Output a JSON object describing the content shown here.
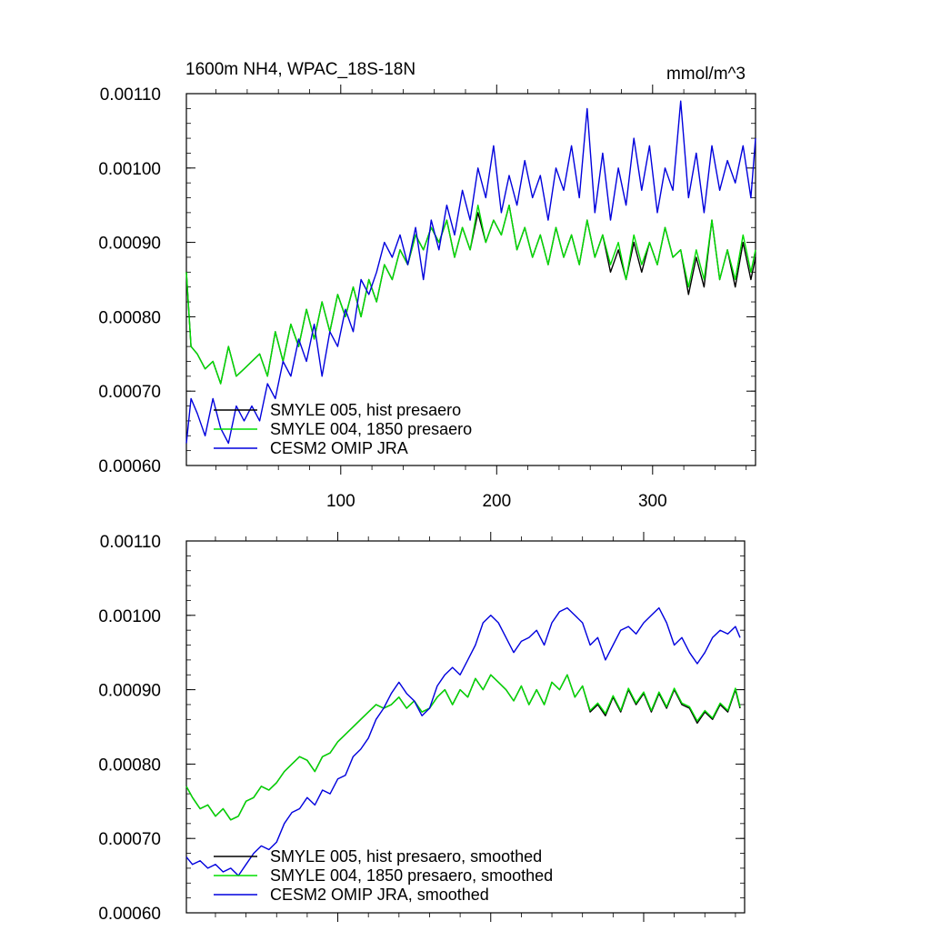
{
  "page": {
    "title": "1600m NH4, WPAC_18S-18N",
    "units": "mmol/m^3"
  },
  "chart_data": [
    {
      "type": "line",
      "title": "1600m NH4, WPAC_18S-18N",
      "units_label": "mmol/m^3",
      "xlabel": "",
      "ylabel": "",
      "xlim": [
        1,
        366
      ],
      "ylim": [
        0.0006,
        0.0011
      ],
      "x_ticks": [
        100,
        200,
        300
      ],
      "x_tick_labels": [
        "100",
        "200",
        "300"
      ],
      "y_ticks": [
        0.0006,
        0.0007,
        0.0008,
        0.0009,
        0.001,
        0.0011
      ],
      "y_tick_labels": [
        "0.00060",
        "0.00070",
        "0.00080",
        "0.00090",
        "0.00100",
        "0.00110"
      ],
      "grid": false,
      "legend_position": "bottom-left",
      "series": [
        {
          "name": "SMYLE 005, hist presaero",
          "color": "#000000",
          "x": [
            1,
            4,
            8,
            13,
            18,
            23,
            28,
            33,
            38,
            43,
            48,
            53,
            58,
            63,
            68,
            73,
            78,
            83,
            88,
            93,
            98,
            103,
            108,
            113,
            118,
            123,
            128,
            133,
            138,
            143,
            148,
            153,
            158,
            163,
            168,
            173,
            178,
            183,
            188,
            193,
            198,
            203,
            208,
            213,
            218,
            223,
            228,
            233,
            238,
            243,
            248,
            253,
            258,
            263,
            268,
            273,
            278,
            283,
            288,
            293,
            298,
            303,
            308,
            313,
            318,
            323,
            328,
            333,
            338,
            343,
            348,
            353,
            358,
            363,
            366
          ],
          "values": [
            0.00086,
            0.00076,
            0.00075,
            0.00073,
            0.00074,
            0.00071,
            0.00076,
            0.00072,
            0.00073,
            0.00074,
            0.00075,
            0.00072,
            0.00078,
            0.00074,
            0.00079,
            0.00076,
            0.00081,
            0.00077,
            0.00082,
            0.00078,
            0.00083,
            0.0008,
            0.00084,
            0.0008,
            0.00085,
            0.00082,
            0.00087,
            0.00085,
            0.00089,
            0.00087,
            0.00091,
            0.00089,
            0.00092,
            0.0009,
            0.00093,
            0.00088,
            0.00092,
            0.00089,
            0.00094,
            0.0009,
            0.00093,
            0.00091,
            0.00095,
            0.00089,
            0.00092,
            0.00088,
            0.00091,
            0.00087,
            0.00092,
            0.00088,
            0.00091,
            0.00087,
            0.00093,
            0.00088,
            0.00091,
            0.00086,
            0.00089,
            0.00085,
            0.0009,
            0.00086,
            0.0009,
            0.00087,
            0.00092,
            0.00088,
            0.00089,
            0.00083,
            0.00088,
            0.00084,
            0.00093,
            0.00085,
            0.00089,
            0.00084,
            0.0009,
            0.00085,
            0.00088
          ]
        },
        {
          "name": "SMYLE 004, 1850 presaero",
          "color": "#00dd00",
          "x": [
            1,
            4,
            8,
            13,
            18,
            23,
            28,
            33,
            38,
            43,
            48,
            53,
            58,
            63,
            68,
            73,
            78,
            83,
            88,
            93,
            98,
            103,
            108,
            113,
            118,
            123,
            128,
            133,
            138,
            143,
            148,
            153,
            158,
            163,
            168,
            173,
            178,
            183,
            188,
            193,
            198,
            203,
            208,
            213,
            218,
            223,
            228,
            233,
            238,
            243,
            248,
            253,
            258,
            263,
            268,
            273,
            278,
            283,
            288,
            293,
            298,
            303,
            308,
            313,
            318,
            323,
            328,
            333,
            338,
            343,
            348,
            353,
            358,
            363,
            366
          ],
          "values": [
            0.00086,
            0.00076,
            0.00075,
            0.00073,
            0.00074,
            0.00071,
            0.00076,
            0.00072,
            0.00073,
            0.00074,
            0.00075,
            0.00072,
            0.00078,
            0.00074,
            0.00079,
            0.00076,
            0.00081,
            0.00077,
            0.00082,
            0.00078,
            0.00083,
            0.0008,
            0.00084,
            0.0008,
            0.00085,
            0.00082,
            0.00087,
            0.00085,
            0.00089,
            0.00087,
            0.00091,
            0.00089,
            0.00092,
            0.0009,
            0.00093,
            0.00088,
            0.00092,
            0.00089,
            0.00095,
            0.0009,
            0.00093,
            0.00091,
            0.00095,
            0.00089,
            0.00092,
            0.00088,
            0.00091,
            0.00087,
            0.00092,
            0.00088,
            0.00091,
            0.00087,
            0.00093,
            0.00088,
            0.00091,
            0.00087,
            0.0009,
            0.00085,
            0.00091,
            0.00087,
            0.0009,
            0.00087,
            0.00092,
            0.00088,
            0.00089,
            0.00084,
            0.00089,
            0.00085,
            0.00093,
            0.00085,
            0.00089,
            0.00085,
            0.00091,
            0.00086,
            0.00089
          ]
        },
        {
          "name": "CESM2 OMIP JRA",
          "color": "#0000dd",
          "x": [
            1,
            4,
            8,
            13,
            18,
            23,
            28,
            33,
            38,
            43,
            48,
            53,
            58,
            63,
            68,
            73,
            78,
            83,
            88,
            93,
            98,
            103,
            108,
            113,
            118,
            123,
            128,
            133,
            138,
            143,
            148,
            153,
            158,
            163,
            168,
            173,
            178,
            183,
            188,
            193,
            198,
            203,
            208,
            213,
            218,
            223,
            228,
            233,
            238,
            243,
            248,
            253,
            258,
            263,
            268,
            273,
            278,
            283,
            288,
            293,
            298,
            303,
            308,
            313,
            318,
            323,
            328,
            333,
            338,
            343,
            348,
            353,
            358,
            363,
            366
          ],
          "values": [
            0.00063,
            0.00069,
            0.00067,
            0.00064,
            0.00069,
            0.00065,
            0.00063,
            0.00068,
            0.00066,
            0.00068,
            0.00066,
            0.00071,
            0.00069,
            0.00074,
            0.00072,
            0.00077,
            0.00074,
            0.00079,
            0.00072,
            0.00078,
            0.00076,
            0.00081,
            0.00078,
            0.00085,
            0.00083,
            0.00086,
            0.0009,
            0.00088,
            0.00091,
            0.00087,
            0.00092,
            0.00085,
            0.00093,
            0.00089,
            0.00095,
            0.00091,
            0.00097,
            0.00093,
            0.001,
            0.00096,
            0.00103,
            0.00094,
            0.00099,
            0.00095,
            0.00101,
            0.00096,
            0.00099,
            0.00093,
            0.001,
            0.00097,
            0.00103,
            0.00096,
            0.00108,
            0.00094,
            0.00102,
            0.00093,
            0.001,
            0.00095,
            0.00104,
            0.00097,
            0.00103,
            0.00094,
            0.001,
            0.00097,
            0.00109,
            0.00096,
            0.00102,
            0.00094,
            0.00103,
            0.00097,
            0.00101,
            0.00098,
            0.00103,
            0.00096,
            0.00104
          ]
        }
      ]
    },
    {
      "type": "line",
      "title": "",
      "xlabel": "",
      "ylabel": "",
      "xlim": [
        1,
        366
      ],
      "ylim": [
        0.0006,
        0.0011
      ],
      "x_ticks": [
        100,
        200,
        300
      ],
      "x_tick_labels": [],
      "y_ticks": [
        0.0006,
        0.0007,
        0.0008,
        0.0009,
        0.001,
        0.0011
      ],
      "y_tick_labels": [
        "0.00060",
        "0.00070",
        "0.00080",
        "0.00090",
        "0.00100",
        "0.00110"
      ],
      "grid": false,
      "legend_position": "bottom-left",
      "series": [
        {
          "name": "SMYLE 005, hist presaero, smoothed",
          "color": "#000000",
          "x": [
            1,
            5,
            10,
            15,
            20,
            25,
            30,
            35,
            40,
            45,
            50,
            55,
            60,
            65,
            70,
            75,
            80,
            85,
            90,
            95,
            100,
            105,
            110,
            115,
            120,
            125,
            130,
            135,
            140,
            145,
            150,
            155,
            160,
            165,
            170,
            175,
            180,
            185,
            190,
            195,
            200,
            205,
            210,
            215,
            220,
            225,
            230,
            235,
            240,
            245,
            250,
            255,
            260,
            265,
            270,
            275,
            280,
            285,
            290,
            295,
            300,
            305,
            310,
            315,
            320,
            325,
            330,
            335,
            340,
            345,
            350,
            355,
            360,
            363
          ],
          "values": [
            0.00077,
            0.000755,
            0.00074,
            0.000745,
            0.00073,
            0.00074,
            0.000725,
            0.00073,
            0.00075,
            0.000755,
            0.00077,
            0.000765,
            0.000775,
            0.00079,
            0.0008,
            0.00081,
            0.000805,
            0.00079,
            0.00081,
            0.000815,
            0.00083,
            0.00084,
            0.00085,
            0.00086,
            0.00087,
            0.00088,
            0.000875,
            0.00088,
            0.00089,
            0.000875,
            0.000885,
            0.00087,
            0.000875,
            0.00089,
            0.0009,
            0.00088,
            0.0009,
            0.00089,
            0.000915,
            0.0009,
            0.00092,
            0.00091,
            0.0009,
            0.000885,
            0.000905,
            0.00088,
            0.0009,
            0.00088,
            0.00091,
            0.0009,
            0.00092,
            0.00089,
            0.000905,
            0.00087,
            0.00088,
            0.000865,
            0.00089,
            0.00087,
            0.0009,
            0.00088,
            0.000895,
            0.00087,
            0.000895,
            0.000875,
            0.0009,
            0.00088,
            0.000875,
            0.000855,
            0.00087,
            0.00086,
            0.00088,
            0.00087,
            0.0009,
            0.000875
          ]
        },
        {
          "name": "SMYLE 004, 1850 presaero, smoothed",
          "color": "#00dd00",
          "x": [
            1,
            5,
            10,
            15,
            20,
            25,
            30,
            35,
            40,
            45,
            50,
            55,
            60,
            65,
            70,
            75,
            80,
            85,
            90,
            95,
            100,
            105,
            110,
            115,
            120,
            125,
            130,
            135,
            140,
            145,
            150,
            155,
            160,
            165,
            170,
            175,
            180,
            185,
            190,
            195,
            200,
            205,
            210,
            215,
            220,
            225,
            230,
            235,
            240,
            245,
            250,
            255,
            260,
            265,
            270,
            275,
            280,
            285,
            290,
            295,
            300,
            305,
            310,
            315,
            320,
            325,
            330,
            335,
            340,
            345,
            350,
            355,
            360,
            363
          ],
          "values": [
            0.00077,
            0.000755,
            0.00074,
            0.000745,
            0.00073,
            0.00074,
            0.000725,
            0.00073,
            0.00075,
            0.000755,
            0.00077,
            0.000765,
            0.000775,
            0.00079,
            0.0008,
            0.00081,
            0.000805,
            0.00079,
            0.00081,
            0.000815,
            0.00083,
            0.00084,
            0.00085,
            0.00086,
            0.00087,
            0.00088,
            0.000875,
            0.00088,
            0.00089,
            0.000875,
            0.000885,
            0.00087,
            0.000875,
            0.00089,
            0.0009,
            0.00088,
            0.0009,
            0.00089,
            0.000915,
            0.0009,
            0.00092,
            0.00091,
            0.0009,
            0.000885,
            0.000905,
            0.00088,
            0.0009,
            0.00088,
            0.00091,
            0.0009,
            0.00092,
            0.00089,
            0.000905,
            0.000872,
            0.000882,
            0.000868,
            0.000892,
            0.000872,
            0.000902,
            0.000882,
            0.000897,
            0.000872,
            0.000897,
            0.000877,
            0.000902,
            0.000882,
            0.000877,
            0.000858,
            0.000872,
            0.000862,
            0.000882,
            0.000872,
            0.000902,
            0.000877
          ]
        },
        {
          "name": "CESM2 OMIP JRA, smoothed",
          "color": "#0000dd",
          "x": [
            1,
            5,
            10,
            15,
            20,
            25,
            30,
            35,
            40,
            45,
            50,
            55,
            60,
            65,
            70,
            75,
            80,
            85,
            90,
            95,
            100,
            105,
            110,
            115,
            120,
            125,
            130,
            135,
            140,
            145,
            150,
            155,
            160,
            165,
            170,
            175,
            180,
            185,
            190,
            195,
            200,
            205,
            210,
            215,
            220,
            225,
            230,
            235,
            240,
            245,
            250,
            255,
            260,
            265,
            270,
            275,
            280,
            285,
            290,
            295,
            300,
            305,
            310,
            315,
            320,
            325,
            330,
            335,
            340,
            345,
            350,
            355,
            360,
            363
          ],
          "values": [
            0.000675,
            0.000665,
            0.00067,
            0.00066,
            0.000665,
            0.000655,
            0.00066,
            0.00065,
            0.000665,
            0.00068,
            0.00069,
            0.000685,
            0.000695,
            0.00072,
            0.000735,
            0.00074,
            0.000755,
            0.000745,
            0.000765,
            0.00076,
            0.00078,
            0.000785,
            0.00081,
            0.00082,
            0.000835,
            0.00086,
            0.000875,
            0.000895,
            0.00091,
            0.000895,
            0.000885,
            0.000865,
            0.000875,
            0.000905,
            0.00092,
            0.00093,
            0.00092,
            0.00094,
            0.00096,
            0.00099,
            0.001,
            0.00099,
            0.00097,
            0.00095,
            0.000965,
            0.00097,
            0.00098,
            0.00096,
            0.00099,
            0.001005,
            0.00101,
            0.001,
            0.00099,
            0.00096,
            0.00097,
            0.00094,
            0.00096,
            0.00098,
            0.000985,
            0.000975,
            0.00099,
            0.001,
            0.00101,
            0.00099,
            0.00096,
            0.00097,
            0.00095,
            0.000935,
            0.00095,
            0.00097,
            0.00098,
            0.000975,
            0.000985,
            0.00097
          ]
        }
      ]
    }
  ]
}
